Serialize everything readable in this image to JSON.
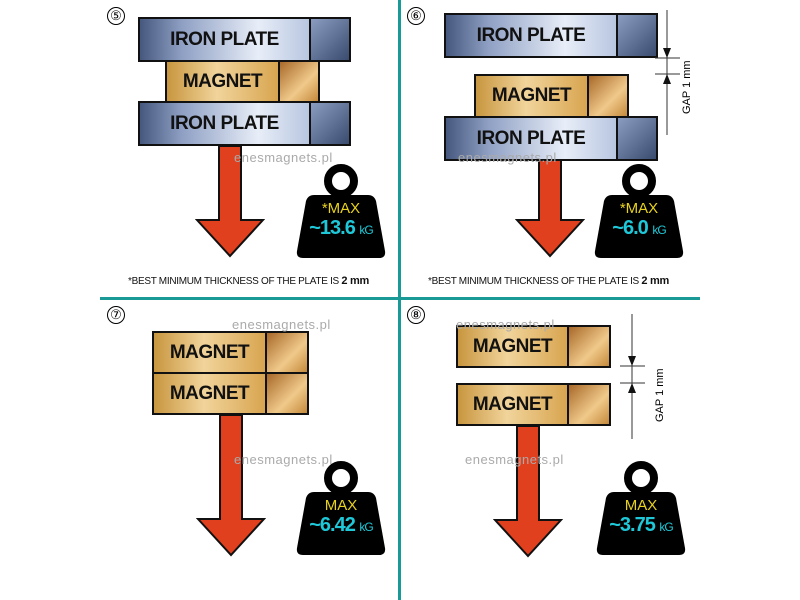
{
  "panels": [
    {
      "number": "⑤",
      "blocks": [
        "IRON PLATE",
        "MAGNET",
        "IRON PLATE"
      ],
      "max_label": "*MAX",
      "value": "~13.6",
      "unit": "kG",
      "note_prefix": "*BEST MINIMUM THICKNESS OF THE PLATE IS ",
      "note_value": "2 mm"
    },
    {
      "number": "⑥",
      "blocks": [
        "IRON PLATE",
        "MAGNET",
        "IRON PLATE"
      ],
      "max_label": "*MAX",
      "value": "~6.0",
      "unit": "kG",
      "gap": "GAP 1 mm",
      "note_prefix": "*BEST MINIMUM THICKNESS OF THE PLATE IS ",
      "note_value": "2 mm"
    },
    {
      "number": "⑦",
      "blocks": [
        "MAGNET",
        "MAGNET"
      ],
      "max_label": "MAX",
      "value": "~6.42",
      "unit": "kG"
    },
    {
      "number": "⑧",
      "blocks": [
        "MAGNET",
        "MAGNET"
      ],
      "max_label": "MAX",
      "value": "~3.75",
      "unit": "kG",
      "gap": "GAP 1 mm"
    }
  ],
  "watermark": "enesmagnets.pl",
  "colors": {
    "divider": "#1a9a96",
    "max": "#e8d21e",
    "value": "#1ec8d8",
    "arrow": "#e0401e"
  }
}
